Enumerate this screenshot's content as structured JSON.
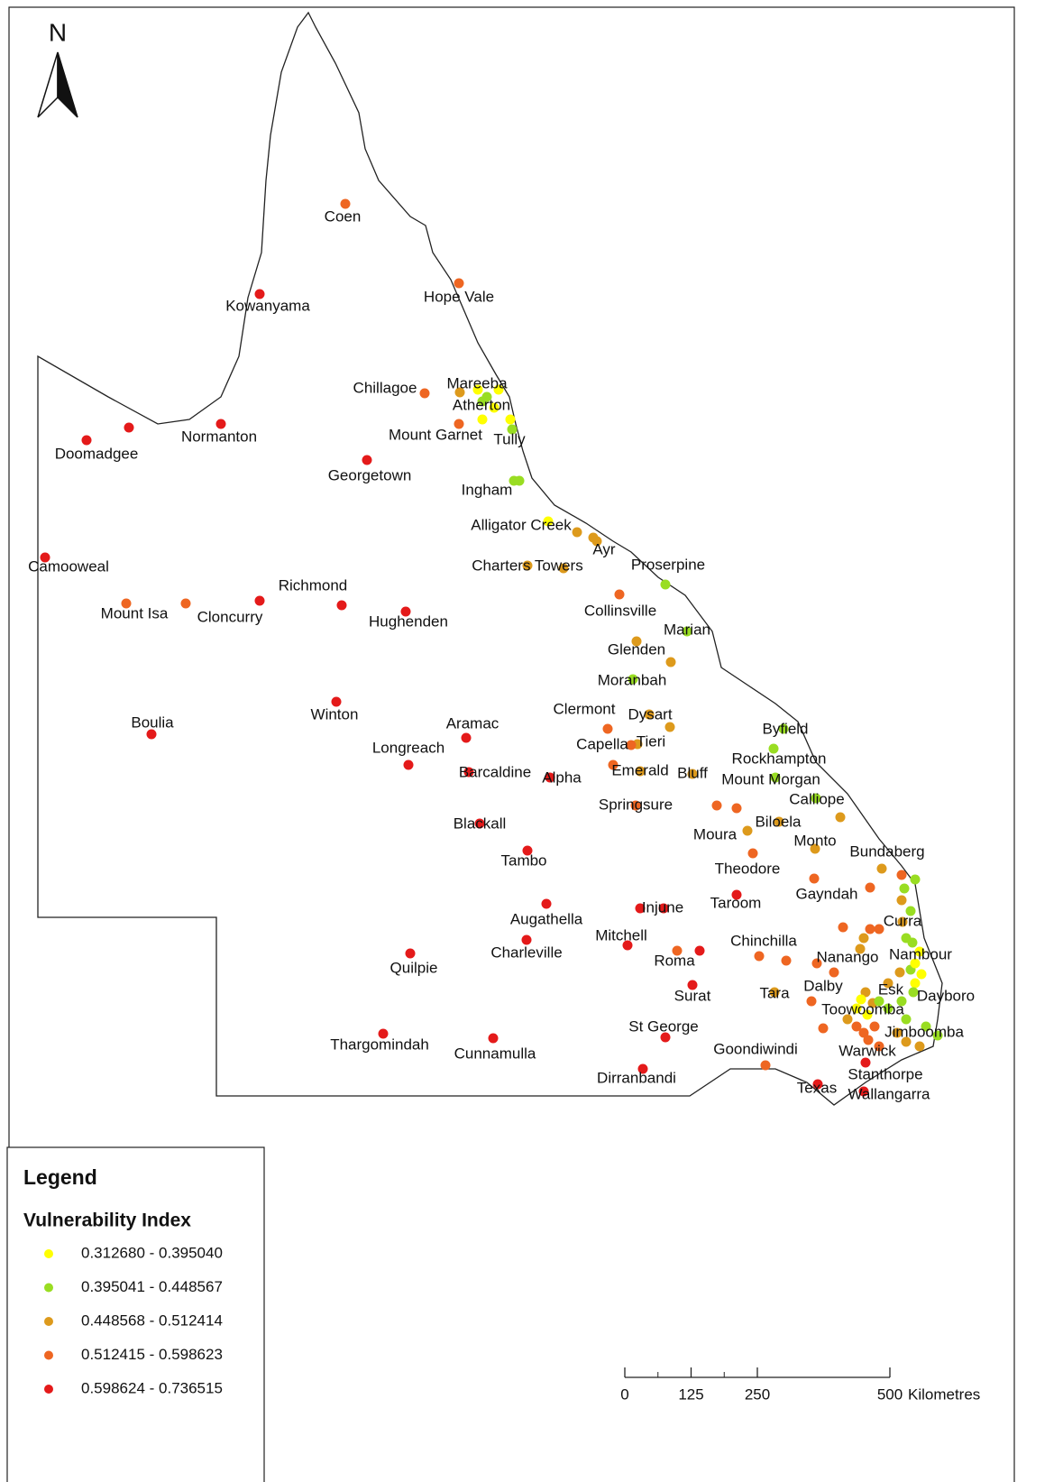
{
  "north": "N",
  "places": [
    "Coen",
    "Kowanyama",
    "Hope Vale",
    "Chillagoe",
    "Mareeba",
    "Atherton",
    "Mount Garnet",
    "Tully",
    "Normanton",
    "Doomadgee",
    "Georgetown",
    "Ingham",
    "Alligator Creek",
    "Ayr",
    "Charters Towers",
    "Proserpine",
    "Camooweal",
    "Mount Isa",
    "Cloncurry",
    "Richmond",
    "Hughenden",
    "Collinsville",
    "Marian",
    "Glenden",
    "Moranbah",
    "Winton",
    "Boulia",
    "Aramac",
    "Longreach",
    "Clermont",
    "Dysart",
    "Tieri",
    "Capella",
    "Barcaldine",
    "Alpha",
    "Emerald",
    "Bluff",
    "Springsure",
    "Byfield",
    "Rockhampton",
    "Mount Morgan",
    "Calliope",
    "Blackall",
    "Moura",
    "Biloela",
    "Monto",
    "Bundaberg",
    "Tambo",
    "Theodore",
    "Gayndah",
    "Taroom",
    "Injune",
    "Augathella",
    "Curra",
    "Chinchilla",
    "Mitchell",
    "Charleville",
    "Roma",
    "Nanango",
    "Nambour",
    "Quilpie",
    "Surat",
    "Tara",
    "Dalby",
    "Esk",
    "Dayboro",
    "Toowoomba",
    "Jimboomba",
    "St George",
    "Thargomindah",
    "Cunnamulla",
    "Goondiwindi",
    "Warwick",
    "Dirranbandi",
    "Stanthorpe",
    "Texas",
    "Wallangarra"
  ],
  "legend": {
    "title": "Legend",
    "subtitle": "Vulnerability Index",
    "classes": [
      {
        "label": "0.312680 - 0.395040",
        "color": "#ffff00"
      },
      {
        "label": "0.395041 - 0.448567",
        "color": "#99dd22"
      },
      {
        "label": "0.448568 - 0.512414",
        "color": "#dd9a1c"
      },
      {
        "label": "0.512415 - 0.598623",
        "color": "#ee6622"
      },
      {
        "label": "0.598624 - 0.736515",
        "color": "#e41a1a"
      }
    ]
  },
  "scale": {
    "ticks": [
      0,
      125,
      250,
      500
    ],
    "unit": "Kilometres"
  }
}
